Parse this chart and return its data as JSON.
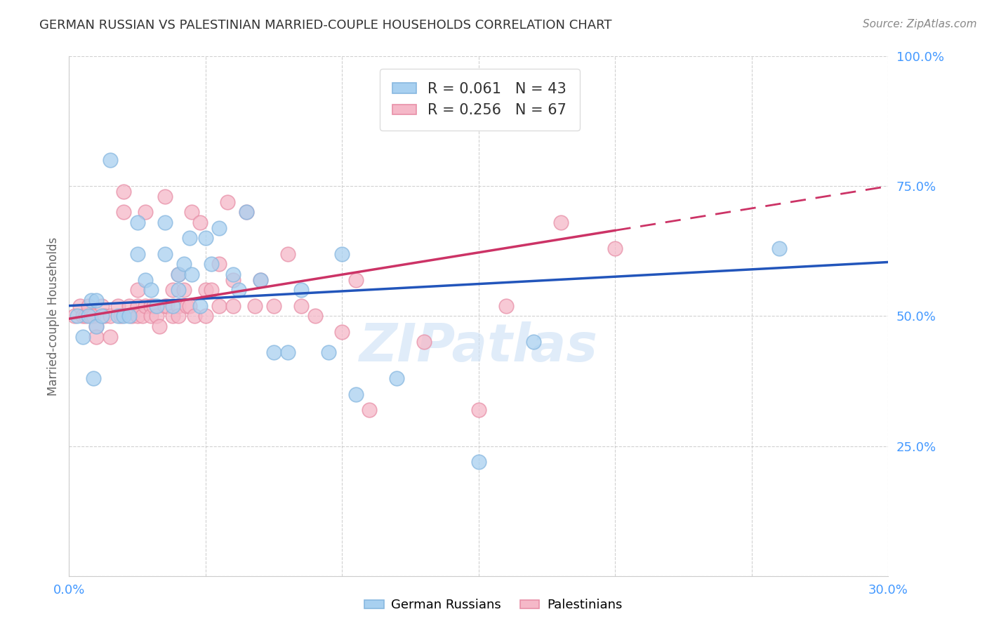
{
  "title": "GERMAN RUSSIAN VS PALESTINIAN MARRIED-COUPLE HOUSEHOLDS CORRELATION CHART",
  "source": "Source: ZipAtlas.com",
  "ylabel": "Married-couple Households",
  "xmin": 0.0,
  "xmax": 0.3,
  "ymin": 0.0,
  "ymax": 1.0,
  "xtick_positions": [
    0.0,
    0.05,
    0.1,
    0.15,
    0.2,
    0.25,
    0.3
  ],
  "ytick_positions": [
    0.0,
    0.25,
    0.5,
    0.75,
    1.0
  ],
  "xtick_labels": [
    "0.0%",
    "",
    "",
    "",
    "",
    "",
    "30.0%"
  ],
  "ytick_labels": [
    "",
    "25.0%",
    "50.0%",
    "75.0%",
    "100.0%"
  ],
  "watermark": "ZIPatlas",
  "legend_line1": "R = 0.061   N = 43",
  "legend_line2": "R = 0.256   N = 67",
  "legend_label1": "German Russians",
  "legend_label2": "Palestinians",
  "blue_color": "#a8d0f0",
  "pink_color": "#f5b8c8",
  "blue_edge": "#88b8e0",
  "pink_edge": "#e890a8",
  "trend_blue": "#2255bb",
  "trend_pink": "#cc3366",
  "blue_R": 0.061,
  "pink_R": 0.256,
  "blue_scatter_x": [
    0.003,
    0.005,
    0.007,
    0.008,
    0.009,
    0.01,
    0.01,
    0.012,
    0.015,
    0.018,
    0.02,
    0.022,
    0.025,
    0.025,
    0.028,
    0.03,
    0.032,
    0.035,
    0.035,
    0.038,
    0.04,
    0.04,
    0.042,
    0.044,
    0.045,
    0.048,
    0.05,
    0.052,
    0.055,
    0.06,
    0.062,
    0.065,
    0.07,
    0.075,
    0.08,
    0.085,
    0.095,
    0.1,
    0.105,
    0.12,
    0.15,
    0.17,
    0.26
  ],
  "blue_scatter_y": [
    0.5,
    0.46,
    0.5,
    0.53,
    0.38,
    0.53,
    0.48,
    0.5,
    0.8,
    0.5,
    0.5,
    0.5,
    0.68,
    0.62,
    0.57,
    0.55,
    0.52,
    0.68,
    0.62,
    0.52,
    0.58,
    0.55,
    0.6,
    0.65,
    0.58,
    0.52,
    0.65,
    0.6,
    0.67,
    0.58,
    0.55,
    0.7,
    0.57,
    0.43,
    0.43,
    0.55,
    0.43,
    0.62,
    0.35,
    0.38,
    0.22,
    0.45,
    0.63
  ],
  "pink_scatter_x": [
    0.002,
    0.004,
    0.005,
    0.006,
    0.007,
    0.008,
    0.009,
    0.01,
    0.01,
    0.012,
    0.013,
    0.015,
    0.015,
    0.018,
    0.019,
    0.02,
    0.02,
    0.022,
    0.023,
    0.025,
    0.025,
    0.025,
    0.027,
    0.028,
    0.028,
    0.03,
    0.03,
    0.031,
    0.032,
    0.033,
    0.035,
    0.035,
    0.036,
    0.038,
    0.038,
    0.04,
    0.04,
    0.04,
    0.042,
    0.043,
    0.044,
    0.045,
    0.046,
    0.048,
    0.05,
    0.05,
    0.052,
    0.055,
    0.055,
    0.058,
    0.06,
    0.06,
    0.065,
    0.068,
    0.07,
    0.075,
    0.08,
    0.085,
    0.09,
    0.1,
    0.105,
    0.11,
    0.13,
    0.15,
    0.16,
    0.18,
    0.2
  ],
  "pink_scatter_y": [
    0.5,
    0.52,
    0.5,
    0.5,
    0.52,
    0.5,
    0.5,
    0.48,
    0.46,
    0.52,
    0.5,
    0.46,
    0.5,
    0.52,
    0.5,
    0.74,
    0.7,
    0.52,
    0.5,
    0.55,
    0.52,
    0.5,
    0.5,
    0.7,
    0.52,
    0.52,
    0.5,
    0.52,
    0.5,
    0.48,
    0.73,
    0.52,
    0.52,
    0.55,
    0.5,
    0.58,
    0.52,
    0.5,
    0.55,
    0.52,
    0.52,
    0.7,
    0.5,
    0.68,
    0.55,
    0.5,
    0.55,
    0.6,
    0.52,
    0.72,
    0.57,
    0.52,
    0.7,
    0.52,
    0.57,
    0.52,
    0.62,
    0.52,
    0.5,
    0.47,
    0.57,
    0.32,
    0.45,
    0.32,
    0.52,
    0.68,
    0.63
  ],
  "background_color": "#ffffff",
  "grid_color": "#cccccc",
  "axis_color": "#4499ff",
  "trend_dash_start": 0.2
}
